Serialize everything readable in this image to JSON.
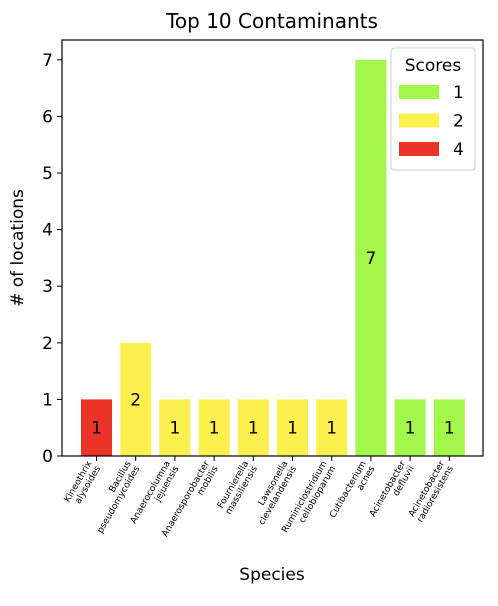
{
  "chart_data": {
    "type": "bar",
    "title": "Top 10 Contaminants",
    "xlabel": "Species",
    "ylabel": "# of locations",
    "ylim": [
      0,
      7.35
    ],
    "yticks": [
      0,
      1,
      2,
      3,
      4,
      5,
      6,
      7
    ],
    "grid": false,
    "legend": {
      "title": "Scores",
      "placement": "top-right",
      "entries": [
        {
          "label": "1",
          "color": "#a3f74b"
        },
        {
          "label": "2",
          "color": "#fbf04e"
        },
        {
          "label": "4",
          "color": "#ea3428"
        }
      ]
    },
    "categories": [
      [
        "Kineothrix",
        "alysoides"
      ],
      [
        "Bacillus",
        "pseudomycoides"
      ],
      [
        "Anaerocolumna",
        "jejuensis"
      ],
      [
        "Anaerosporobacter",
        "mobilis"
      ],
      [
        "Fournierella",
        "massiliensis"
      ],
      [
        "Lawsonella",
        "clevelandensis"
      ],
      [
        "Ruminiclostridium",
        "cellobioparum"
      ],
      [
        "Cutibacterium",
        "acnes"
      ],
      [
        "Acinetobacter",
        "defluvii"
      ],
      [
        "Acinetobacter",
        "radioresistens"
      ]
    ],
    "values": [
      1,
      2,
      1,
      1,
      1,
      1,
      1,
      7,
      1,
      1
    ],
    "scores": [
      "4",
      "2",
      "2",
      "2",
      "2",
      "2",
      "2",
      "1",
      "1",
      "1"
    ],
    "data_labels": [
      "1",
      "2",
      "1",
      "1",
      "1",
      "1",
      "1",
      "7",
      "1",
      "1"
    ]
  }
}
